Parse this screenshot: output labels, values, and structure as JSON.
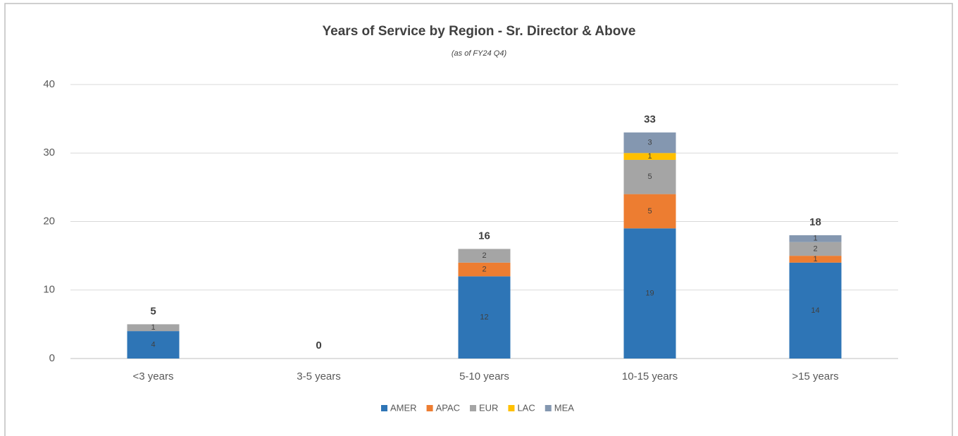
{
  "chart_data": {
    "type": "stacked_bar",
    "title": "Years of Service by Region - Sr. Director & Above",
    "subtitle": "(as of FY24 Q4)",
    "categories": [
      "<3 years",
      "3-5 years",
      "5-10 years",
      "10-15 years",
      ">15 years"
    ],
    "series": [
      {
        "name": "AMER",
        "color": "#2e75b6",
        "values": [
          4,
          0,
          12,
          19,
          14
        ]
      },
      {
        "name": "APAC",
        "color": "#ed7d31",
        "values": [
          0,
          0,
          2,
          5,
          1
        ]
      },
      {
        "name": "EUR",
        "color": "#a5a5a5",
        "values": [
          1,
          0,
          2,
          5,
          2
        ]
      },
      {
        "name": "LAC",
        "color": "#ffc000",
        "values": [
          0,
          0,
          0,
          1,
          0
        ]
      },
      {
        "name": "MEA",
        "color": "#8497b0",
        "values": [
          0,
          0,
          0,
          3,
          1
        ]
      }
    ],
    "totals": [
      5,
      0,
      16,
      33,
      18
    ],
    "ylim": [
      0,
      40
    ],
    "yticks": [
      0,
      10,
      20,
      30,
      40
    ],
    "grid": true,
    "legend": "bottom"
  }
}
